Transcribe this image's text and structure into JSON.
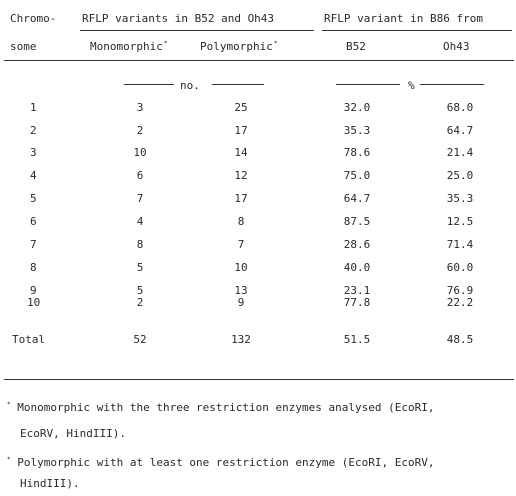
{
  "header": {
    "chromosome_line1": "Chromo-",
    "chromosome_line2": "some",
    "group1_title": "RFLP variants in B52 and Oh43",
    "group2_title": "RFLP variant in B86 from",
    "col_monomorphic": "Monomorphic",
    "col_monomorphic_mark": "*",
    "col_polymorphic": "Polymorphic",
    "col_polymorphic_mark": "*",
    "col_b52": "B52",
    "col_oh43": "Oh43",
    "unit_no": "no.",
    "unit_pct": "%"
  },
  "rows": [
    {
      "chromosome": "1",
      "monomorphic": "3",
      "polymorphic": "25",
      "b52": "32.0",
      "oh43": "68.0"
    },
    {
      "chromosome": "2",
      "monomorphic": "2",
      "polymorphic": "17",
      "b52": "35.3",
      "oh43": "64.7"
    },
    {
      "chromosome": "3",
      "monomorphic": "10",
      "polymorphic": "14",
      "b52": "78.6",
      "oh43": "21.4"
    },
    {
      "chromosome": "4",
      "monomorphic": "6",
      "polymorphic": "12",
      "b52": "75.0",
      "oh43": "25.0"
    },
    {
      "chromosome": "5",
      "monomorphic": "7",
      "polymorphic": "17",
      "b52": "64.7",
      "oh43": "35.3"
    },
    {
      "chromosome": "6",
      "monomorphic": "4",
      "polymorphic": "8",
      "b52": "87.5",
      "oh43": "12.5"
    },
    {
      "chromosome": "7",
      "monomorphic": "8",
      "polymorphic": "7",
      "b52": "28.6",
      "oh43": "71.4"
    },
    {
      "chromosome": "8",
      "monomorphic": "5",
      "polymorphic": "10",
      "b52": "40.0",
      "oh43": "60.0"
    },
    {
      "chromosome": "9",
      "monomorphic": "5",
      "polymorphic": "13",
      "b52": "23.1",
      "oh43": "76.9"
    },
    {
      "chromosome": "10",
      "monomorphic": "2",
      "polymorphic": "9",
      "b52": "77.8",
      "oh43": "22.2"
    }
  ],
  "total": {
    "label": "Total",
    "monomorphic": "52",
    "polymorphic": "132",
    "b52": "51.5",
    "oh43": "48.5"
  },
  "footnotes": {
    "fn1_mark": "*",
    "fn1_line1": "Monomorphic with the three restriction enzymes analysed (EcoRI,",
    "fn1_line2": "EcoRV, HindIII).",
    "fn2_mark": "*",
    "fn2_line1": "Polymorphic with at least one restriction enzyme (EcoRI, EcoRV,",
    "fn2_line2": "HindIII)."
  }
}
